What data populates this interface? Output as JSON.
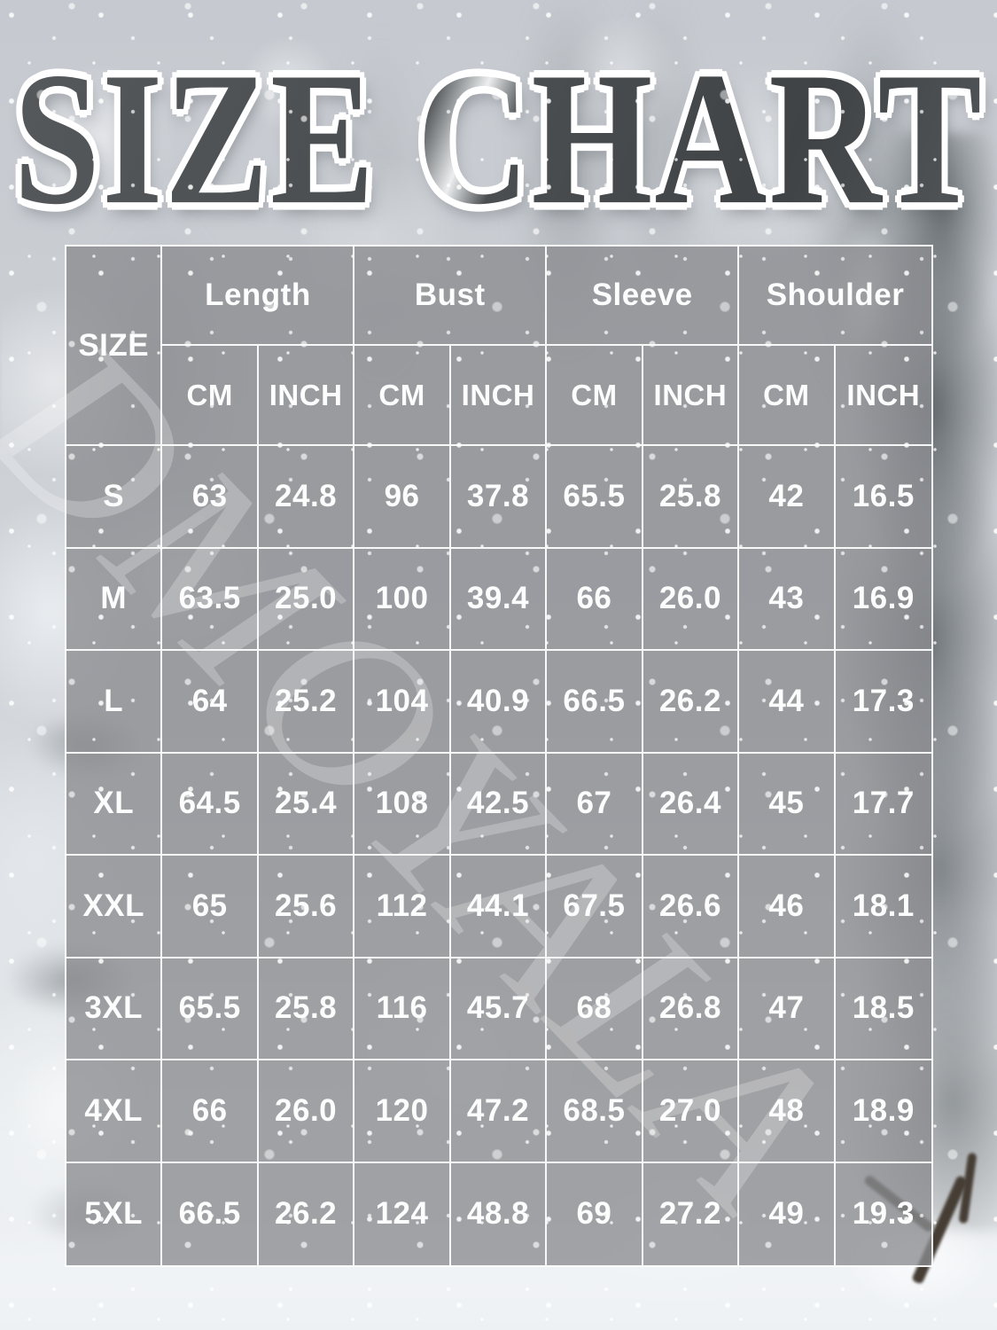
{
  "title": "SIZE CHART",
  "watermark": "DMOYALA",
  "table": {
    "size_header": "SIZE",
    "groups": [
      "Length",
      "Bust",
      "Sleeve",
      "Shoulder"
    ],
    "units": [
      "CM",
      "INCH",
      "CM",
      "INCH",
      "CM",
      "INCH",
      "CM",
      "INCH"
    ],
    "rows": [
      {
        "size": "S",
        "values": [
          "63",
          "24.8",
          "96",
          "37.8",
          "65.5",
          "25.8",
          "42",
          "16.5"
        ]
      },
      {
        "size": "M",
        "values": [
          "63.5",
          "25.0",
          "100",
          "39.4",
          "66",
          "26.0",
          "43",
          "16.9"
        ]
      },
      {
        "size": "L",
        "values": [
          "64",
          "25.2",
          "104",
          "40.9",
          "66.5",
          "26.2",
          "44",
          "17.3"
        ]
      },
      {
        "size": "XL",
        "values": [
          "64.5",
          "25.4",
          "108",
          "42.5",
          "67",
          "26.4",
          "45",
          "17.7"
        ]
      },
      {
        "size": "XXL",
        "values": [
          "65",
          "25.6",
          "112",
          "44.1",
          "67.5",
          "26.6",
          "46",
          "18.1"
        ]
      },
      {
        "size": "3XL",
        "values": [
          "65.5",
          "25.8",
          "116",
          "45.7",
          "68",
          "26.8",
          "47",
          "18.5"
        ]
      },
      {
        "size": "4XL",
        "values": [
          "66",
          "26.0",
          "120",
          "47.2",
          "68.5",
          "27.0",
          "48",
          "18.9"
        ]
      },
      {
        "size": "5XL",
        "values": [
          "66.5",
          "26.2",
          "124",
          "48.8",
          "69",
          "27.2",
          "49",
          "19.3"
        ]
      }
    ]
  },
  "chart_data": {
    "type": "table",
    "title": "SIZE CHART",
    "column_groups": [
      "Length",
      "Bust",
      "Sleeve",
      "Shoulder"
    ],
    "columns": [
      "SIZE",
      "Length CM",
      "Length INCH",
      "Bust CM",
      "Bust INCH",
      "Sleeve CM",
      "Sleeve INCH",
      "Shoulder CM",
      "Shoulder INCH"
    ],
    "rows": [
      [
        "S",
        63,
        24.8,
        96,
        37.8,
        65.5,
        25.8,
        42,
        16.5
      ],
      [
        "M",
        63.5,
        25.0,
        100,
        39.4,
        66,
        26.0,
        43,
        16.9
      ],
      [
        "L",
        64,
        25.2,
        104,
        40.9,
        66.5,
        26.2,
        44,
        17.3
      ],
      [
        "XL",
        64.5,
        25.4,
        108,
        42.5,
        67,
        26.4,
        45,
        17.7
      ],
      [
        "XXL",
        65,
        25.6,
        112,
        44.1,
        67.5,
        26.6,
        46,
        18.1
      ],
      [
        "3XL",
        65.5,
        25.8,
        116,
        45.7,
        68,
        26.8,
        47,
        18.5
      ],
      [
        "4XL",
        66,
        26.0,
        120,
        47.2,
        68.5,
        27.0,
        48,
        18.9
      ],
      [
        "5XL",
        66.5,
        26.2,
        124,
        48.8,
        69,
        27.2,
        49,
        19.3
      ]
    ]
  },
  "colors": {
    "cell_overlay": "rgba(138,140,143,0.78)",
    "grid_line": "#fcfdfd",
    "cell_text": "#fdfdfe",
    "title_fill": "#4a4e50",
    "title_outline": "#ffffff",
    "watermark_color": "rgba(255,255,255,0.24)"
  }
}
